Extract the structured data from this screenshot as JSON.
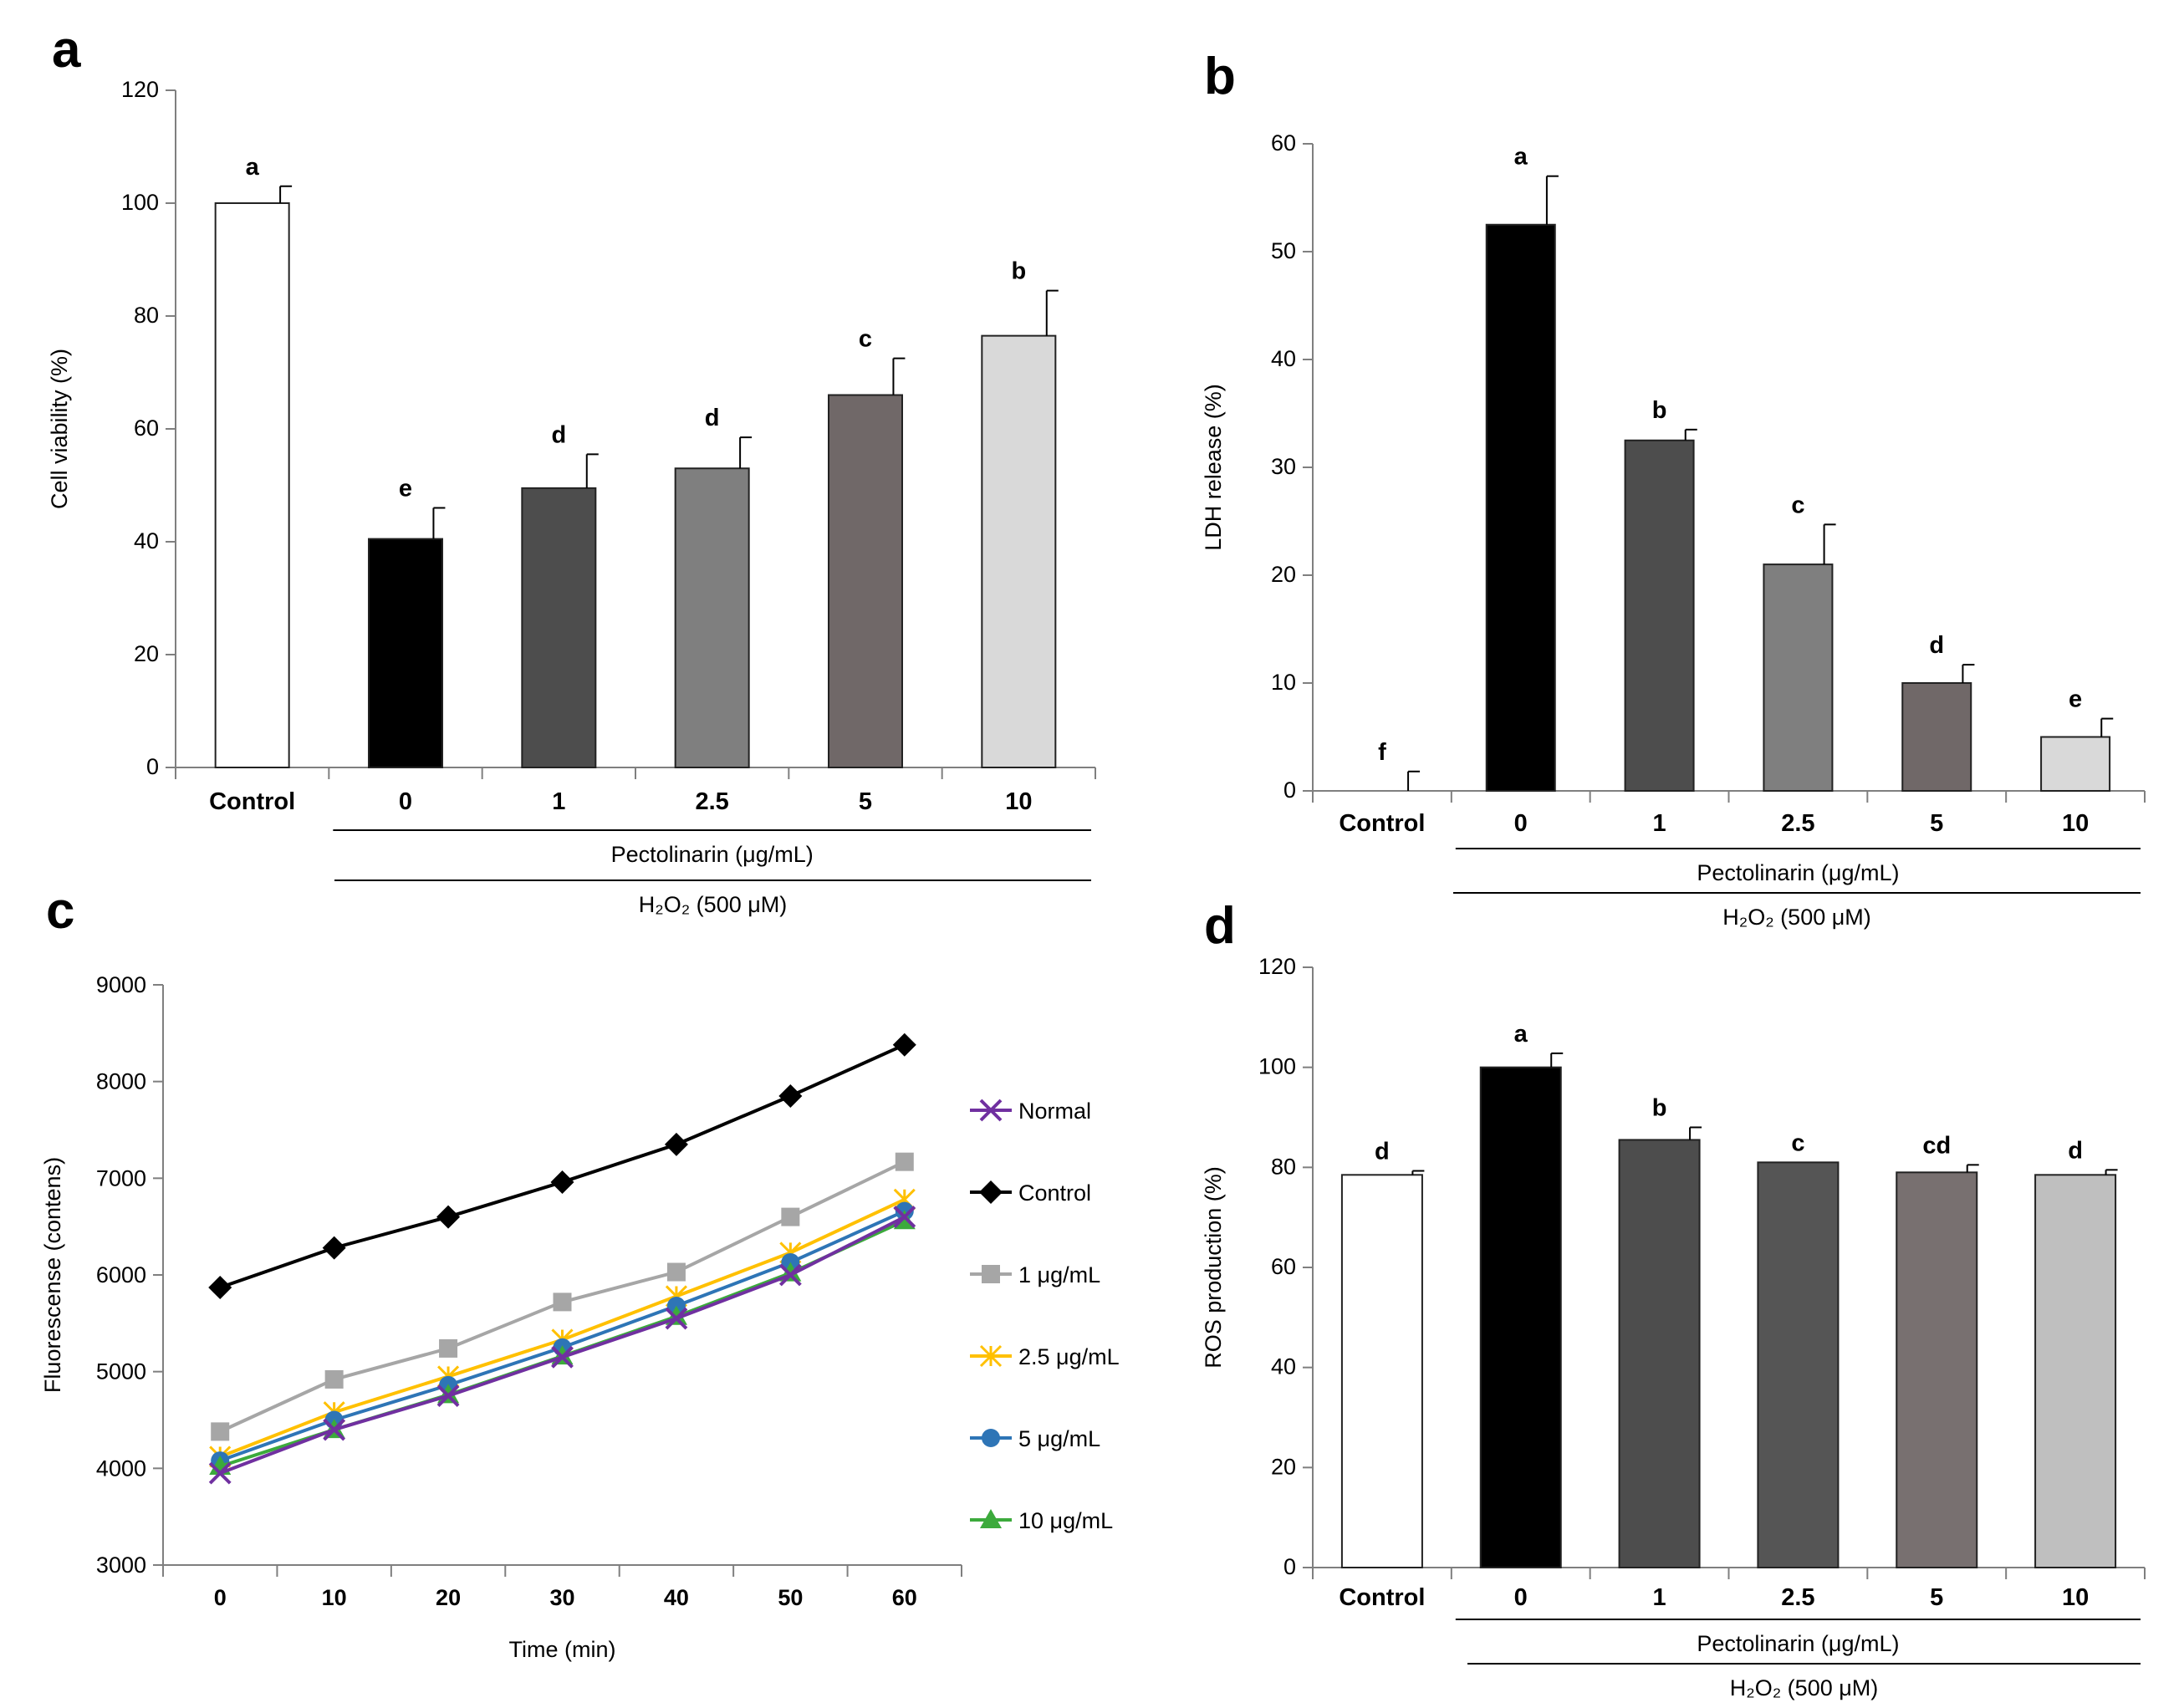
{
  "colors": {
    "axis": "#7f7f7f",
    "text": "#000000",
    "bar_outline": "#222222",
    "bar_fills": [
      "#ffffff",
      "#000000",
      "#4d4d4d",
      "#7f7f7f",
      "#706868",
      "#d9d9d9"
    ],
    "bar_fills_d": [
      "#ffffff",
      "#000000",
      "#4d4d4d",
      "#555555",
      "#787070",
      "#bfbfbf"
    ],
    "series_c": [
      "#7030a0",
      "#000000",
      "#a6a6a6",
      "#ffc000",
      "#2e75b6",
      "#3caa3c"
    ]
  },
  "chart_data": [
    {
      "panel_label": "a",
      "type": "bar",
      "ylabel": "Cell viability (%)",
      "ylim": [
        0,
        120
      ],
      "yticks": [
        0,
        20,
        40,
        60,
        80,
        100,
        120
      ],
      "yticks_text": [
        "0",
        "20",
        "40",
        "60",
        "80",
        "100",
        "120"
      ],
      "categories": [
        "Control",
        "0",
        "1",
        "2.5",
        "5",
        "10"
      ],
      "values": [
        100,
        40.5,
        49.5,
        53,
        66,
        76.5
      ],
      "errors": [
        3,
        5.5,
        6,
        5.5,
        6.5,
        8
      ],
      "sig_letters": [
        "a",
        "e",
        "d",
        "d",
        "c",
        "b"
      ],
      "group_labels": [
        "Pectolinarin (μg/mL)",
        "H₂O₂ (500 μM)"
      ]
    },
    {
      "panel_label": "b",
      "type": "bar",
      "ylabel": "LDH release (%)",
      "ylim": [
        0,
        60
      ],
      "yticks": [
        0,
        10,
        20,
        30,
        40,
        50,
        60
      ],
      "yticks_text": [
        "0",
        "10",
        "20",
        "30",
        "40",
        "50",
        "60"
      ],
      "categories": [
        "Control",
        "0",
        "1",
        "2.5",
        "5",
        "10"
      ],
      "values": [
        0,
        52.5,
        32.5,
        21,
        10,
        5
      ],
      "errors": [
        1.8,
        4.5,
        1,
        3.7,
        1.7,
        1.7
      ],
      "sig_letters": [
        "f",
        "a",
        "b",
        "c",
        "d",
        "e"
      ],
      "group_labels": [
        "Pectolinarin (μg/mL)",
        "H₂O₂ (500 μM)"
      ]
    },
    {
      "panel_label": "c",
      "type": "line",
      "xlabel": "Time (min)",
      "ylabel": "Fluorescense (contens)",
      "ylim": [
        3000,
        9000
      ],
      "yticks": [
        3000,
        4000,
        5000,
        6000,
        7000,
        8000,
        9000
      ],
      "yticks_text": [
        "3000",
        "4000",
        "5000",
        "6000",
        "7000",
        "8000",
        "9000"
      ],
      "x": [
        "0",
        "10",
        "20",
        "30",
        "40",
        "50",
        "60"
      ],
      "series": [
        {
          "name": "Normal",
          "values": [
            3950,
            4400,
            4750,
            5150,
            5550,
            6000,
            6600
          ]
        },
        {
          "name": "Control",
          "values": [
            5870,
            6280,
            6600,
            6960,
            7350,
            7850,
            8380
          ]
        },
        {
          "name": "1 μg/mL",
          "values": [
            4380,
            4920,
            5240,
            5720,
            6030,
            6600,
            7170
          ]
        },
        {
          "name": "2.5 μg/mL",
          "values": [
            4120,
            4580,
            4950,
            5330,
            5780,
            6230,
            6780
          ]
        },
        {
          "name": "5 μg/mL",
          "values": [
            4080,
            4500,
            4860,
            5250,
            5680,
            6130,
            6660
          ]
        },
        {
          "name": "10 μg/mL",
          "values": [
            4020,
            4400,
            4760,
            5160,
            5570,
            6020,
            6560
          ]
        }
      ]
    },
    {
      "panel_label": "d",
      "type": "bar",
      "ylabel": "ROS production (%)",
      "ylim": [
        0,
        120
      ],
      "yticks": [
        0,
        20,
        40,
        60,
        80,
        100,
        120
      ],
      "yticks_text": [
        "0",
        "20",
        "40",
        "60",
        "80",
        "100",
        "120"
      ],
      "categories": [
        "Control",
        "0",
        "1",
        "2.5",
        "5",
        "10"
      ],
      "values": [
        78.5,
        100,
        85.5,
        81,
        79,
        78.5
      ],
      "errors": [
        0.8,
        2.8,
        2.5,
        0,
        1.5,
        1
      ],
      "sig_letters": [
        "d",
        "a",
        "b",
        "c",
        "cd",
        "d"
      ],
      "group_labels": [
        "Pectolinarin (μg/mL)",
        "H₂O₂ (500 μM)"
      ]
    }
  ]
}
